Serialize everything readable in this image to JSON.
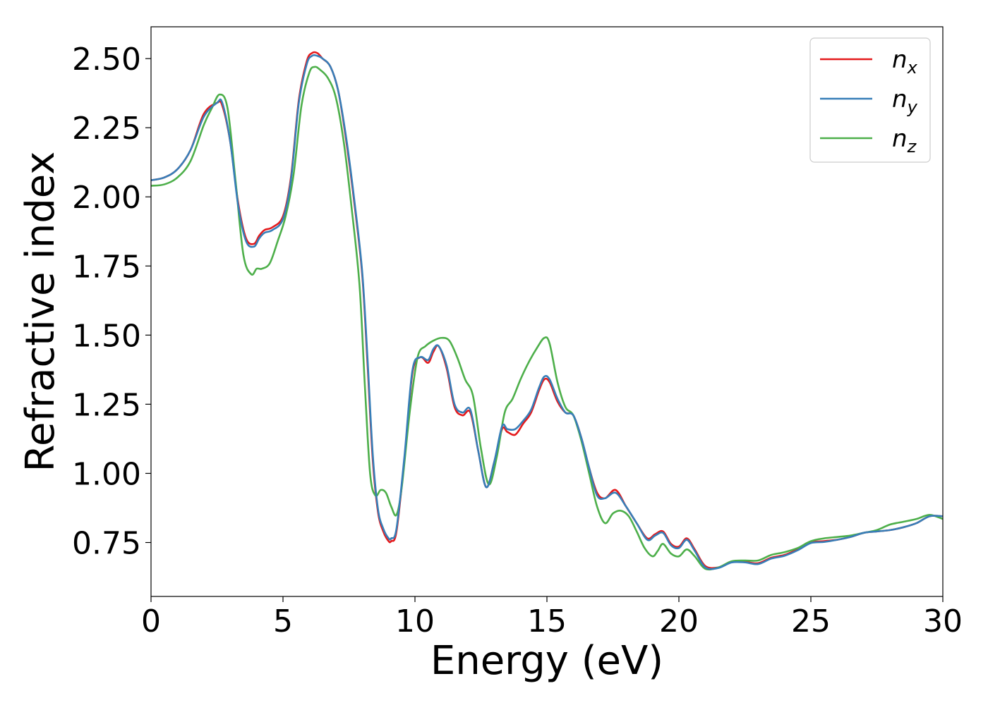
{
  "chart_data": {
    "type": "line",
    "xlabel": "Energy (eV)",
    "ylabel": "Refractive index",
    "xlim": [
      0,
      30
    ],
    "ylim": [
      0.555,
      2.615
    ],
    "x_ticks": [
      "0",
      "5",
      "10",
      "15",
      "20",
      "25",
      "30"
    ],
    "y_ticks": [
      "0.75",
      "1.00",
      "1.25",
      "1.50",
      "1.75",
      "2.00",
      "2.25",
      "2.50"
    ],
    "x_tick_values": [
      0,
      5,
      10,
      15,
      20,
      25,
      30
    ],
    "y_tick_values": [
      0.75,
      1.0,
      1.25,
      1.5,
      1.75,
      2.0,
      2.25,
      2.5
    ],
    "grid": false,
    "legend_position": "top-right",
    "series": [
      {
        "name": "n",
        "subscript": "x",
        "color": "#e41a1c",
        "x": [
          0,
          0.5,
          1,
          1.5,
          2,
          2.5,
          2.7,
          3,
          3.3,
          3.6,
          3.9,
          4.1,
          4.3,
          4.6,
          5,
          5.3,
          5.6,
          5.9,
          6.1,
          6.3,
          6.5,
          6.8,
          7.1,
          7.4,
          7.7,
          8,
          8.2,
          8.4,
          8.6,
          8.8,
          9,
          9.1,
          9.3,
          9.6,
          9.9,
          10.2,
          10.5,
          10.7,
          10.9,
          11.2,
          11.5,
          11.8,
          12.1,
          12.4,
          12.7,
          13,
          13.3,
          13.5,
          13.8,
          14.1,
          14.4,
          14.7,
          14.9,
          15.1,
          15.4,
          15.7,
          16,
          16.3,
          16.6,
          16.9,
          17.2,
          17.6,
          18,
          18.4,
          18.8,
          19.1,
          19.4,
          19.7,
          20,
          20.3,
          20.6,
          21,
          21.5,
          22,
          22.5,
          23,
          23.5,
          24,
          24.5,
          25,
          25.5,
          26,
          26.5,
          27,
          27.5,
          28,
          28.5,
          29,
          29.5,
          30
        ],
        "values": [
          2.06,
          2.07,
          2.1,
          2.17,
          2.3,
          2.34,
          2.33,
          2.2,
          1.98,
          1.85,
          1.83,
          1.86,
          1.88,
          1.89,
          1.93,
          2.07,
          2.35,
          2.49,
          2.52,
          2.52,
          2.5,
          2.47,
          2.38,
          2.2,
          1.98,
          1.72,
          1.4,
          1.05,
          0.86,
          0.79,
          0.755,
          0.755,
          0.79,
          1.05,
          1.36,
          1.42,
          1.4,
          1.44,
          1.46,
          1.38,
          1.24,
          1.21,
          1.22,
          1.08,
          0.95,
          1.04,
          1.16,
          1.15,
          1.14,
          1.18,
          1.22,
          1.3,
          1.34,
          1.33,
          1.26,
          1.22,
          1.21,
          1.13,
          1.02,
          0.93,
          0.91,
          0.94,
          0.88,
          0.82,
          0.765,
          0.78,
          0.79,
          0.745,
          0.735,
          0.765,
          0.725,
          0.665,
          0.66,
          0.68,
          0.68,
          0.675,
          0.695,
          0.705,
          0.725,
          0.75,
          0.755,
          0.76,
          0.77,
          0.785,
          0.79,
          0.795,
          0.805,
          0.82,
          0.845,
          0.845
        ]
      },
      {
        "name": "n",
        "subscript": "y",
        "color": "#377eb8",
        "x": [
          0,
          0.5,
          1,
          1.5,
          2,
          2.5,
          2.7,
          3,
          3.3,
          3.6,
          3.9,
          4.1,
          4.3,
          4.6,
          5,
          5.3,
          5.6,
          5.9,
          6.1,
          6.3,
          6.5,
          6.8,
          7.1,
          7.4,
          7.7,
          8,
          8.2,
          8.4,
          8.6,
          8.8,
          9,
          9.1,
          9.3,
          9.6,
          9.9,
          10.2,
          10.5,
          10.7,
          10.9,
          11.2,
          11.5,
          11.8,
          12.1,
          12.4,
          12.7,
          13,
          13.3,
          13.5,
          13.8,
          14.1,
          14.4,
          14.7,
          14.9,
          15.1,
          15.4,
          15.7,
          16,
          16.3,
          16.6,
          16.9,
          17.2,
          17.6,
          18,
          18.4,
          18.8,
          19.1,
          19.4,
          19.7,
          20,
          20.3,
          20.6,
          21,
          21.5,
          22,
          22.5,
          23,
          23.5,
          24,
          24.5,
          25,
          25.5,
          26,
          26.5,
          27,
          27.5,
          28,
          28.5,
          29,
          29.5,
          30
        ],
        "values": [
          2.06,
          2.07,
          2.1,
          2.17,
          2.29,
          2.34,
          2.34,
          2.2,
          1.97,
          1.84,
          1.82,
          1.85,
          1.87,
          1.88,
          1.92,
          2.06,
          2.34,
          2.48,
          2.51,
          2.51,
          2.5,
          2.47,
          2.38,
          2.21,
          1.99,
          1.73,
          1.42,
          1.07,
          0.87,
          0.8,
          0.765,
          0.765,
          0.8,
          1.06,
          1.37,
          1.42,
          1.41,
          1.45,
          1.46,
          1.39,
          1.25,
          1.22,
          1.23,
          1.08,
          0.95,
          1.04,
          1.17,
          1.16,
          1.16,
          1.19,
          1.23,
          1.31,
          1.35,
          1.34,
          1.27,
          1.22,
          1.21,
          1.13,
          1.02,
          0.92,
          0.91,
          0.93,
          0.88,
          0.82,
          0.76,
          0.775,
          0.785,
          0.74,
          0.73,
          0.76,
          0.72,
          0.66,
          0.658,
          0.678,
          0.678,
          0.672,
          0.692,
          0.702,
          0.722,
          0.748,
          0.752,
          0.76,
          0.77,
          0.785,
          0.79,
          0.795,
          0.805,
          0.82,
          0.845,
          0.845
        ]
      },
      {
        "name": "n",
        "subscript": "z",
        "color": "#4daf4a",
        "x": [
          0,
          0.5,
          1,
          1.5,
          2,
          2.3,
          2.6,
          2.9,
          3.2,
          3.5,
          3.8,
          4.0,
          4.2,
          4.5,
          4.8,
          5.1,
          5.4,
          5.7,
          6.0,
          6.2,
          6.4,
          6.7,
          7.0,
          7.3,
          7.6,
          7.9,
          8.1,
          8.3,
          8.5,
          8.7,
          8.9,
          9.1,
          9.3,
          9.5,
          9.8,
          10.1,
          10.4,
          10.7,
          11.0,
          11.3,
          11.6,
          11.9,
          12.2,
          12.5,
          12.8,
          13.1,
          13.4,
          13.7,
          14.0,
          14.3,
          14.6,
          14.9,
          15.1,
          15.4,
          15.7,
          16.0,
          16.3,
          16.6,
          16.9,
          17.2,
          17.5,
          17.8,
          18.1,
          18.4,
          18.7,
          19.0,
          19.2,
          19.4,
          19.7,
          20.0,
          20.3,
          20.6,
          21.0,
          21.5,
          22,
          22.5,
          23,
          23.5,
          24,
          24.5,
          25,
          25.5,
          26,
          26.5,
          27,
          27.5,
          28,
          28.5,
          29,
          29.5,
          30
        ],
        "values": [
          2.04,
          2.045,
          2.07,
          2.13,
          2.26,
          2.32,
          2.37,
          2.32,
          2.06,
          1.79,
          1.72,
          1.74,
          1.74,
          1.76,
          1.84,
          1.93,
          2.08,
          2.33,
          2.45,
          2.47,
          2.46,
          2.43,
          2.36,
          2.2,
          1.96,
          1.68,
          1.32,
          1.0,
          0.92,
          0.94,
          0.93,
          0.88,
          0.85,
          0.95,
          1.22,
          1.42,
          1.46,
          1.48,
          1.49,
          1.48,
          1.42,
          1.34,
          1.28,
          1.09,
          0.96,
          1.06,
          1.22,
          1.27,
          1.34,
          1.4,
          1.45,
          1.49,
          1.47,
          1.33,
          1.24,
          1.21,
          1.12,
          1.0,
          0.88,
          0.82,
          0.855,
          0.865,
          0.845,
          0.79,
          0.73,
          0.7,
          0.72,
          0.745,
          0.71,
          0.7,
          0.725,
          0.7,
          0.655,
          0.66,
          0.682,
          0.685,
          0.685,
          0.705,
          0.715,
          0.73,
          0.755,
          0.765,
          0.77,
          0.775,
          0.785,
          0.795,
          0.815,
          0.825,
          0.835,
          0.85,
          0.835
        ]
      }
    ]
  }
}
